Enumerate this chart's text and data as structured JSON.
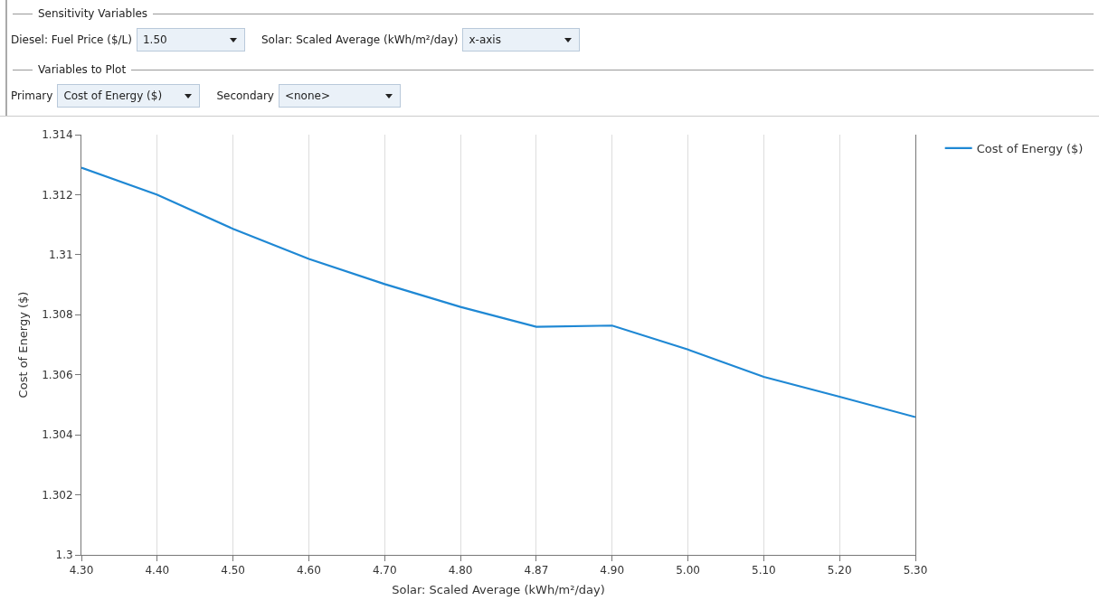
{
  "chart_data": {
    "type": "line",
    "xlabel": "Solar: Scaled Average (kWh/m²/day)",
    "ylabel": "Cost of Energy ($)",
    "annotations": [
      "Sensitivity Variables",
      "Diesel: Fuel Price ($/L)",
      "1.50",
      "Solar: Scaled Average (kWh/m²/day)",
      "x-axis",
      "Variables to Plot",
      "Primary",
      "Cost of Energy ($)",
      "Secondary",
      "<none>"
    ],
    "categories": [
      "4.30",
      "4.40",
      "4.50",
      "4.60",
      "4.70",
      "4.80",
      "4.87",
      "4.90",
      "5.00",
      "5.10",
      "5.20",
      "5.30"
    ],
    "series": [
      {
        "name": "Cost of Energy ($)",
        "color": "#1f88d4",
        "values": [
          1.3129,
          1.312,
          1.31086,
          1.30986,
          1.30902,
          1.30826,
          1.3076,
          1.30764,
          1.30684,
          1.30593,
          1.30527,
          1.30459
        ]
      }
    ],
    "ylim": [
      1.3,
      1.314
    ],
    "yticks": [
      1.3,
      1.302,
      1.304,
      1.306,
      1.308,
      1.31,
      1.312,
      1.314
    ],
    "grid": "x",
    "legend": "top right",
    "marker": "none",
    "line_style": "solid"
  }
}
